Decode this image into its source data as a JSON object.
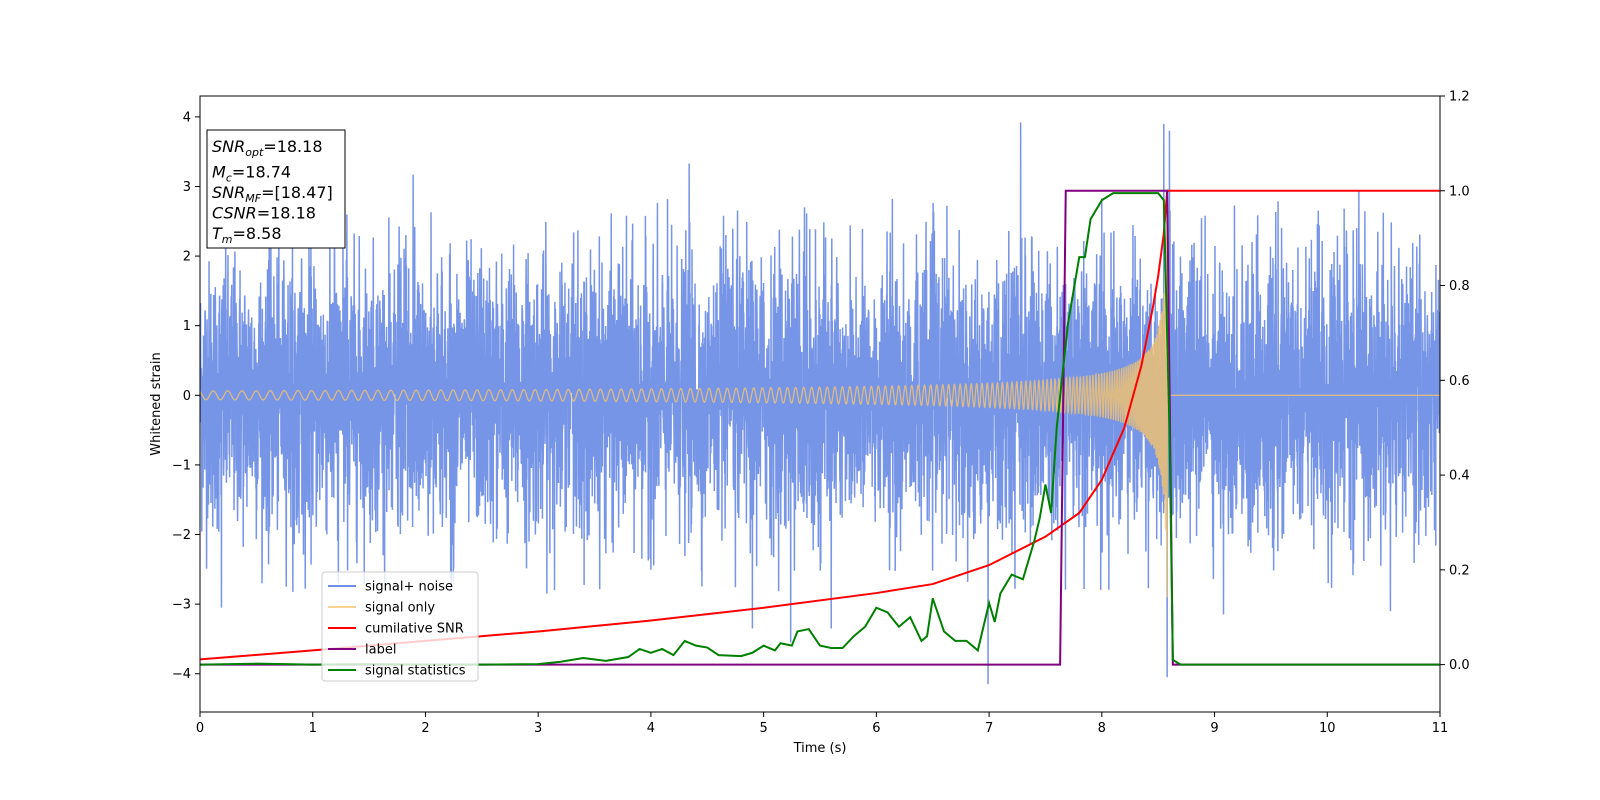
{
  "chart_data": {
    "type": "line",
    "xlabel": "Time (s)",
    "ylabel": "Whitened strain",
    "xlim": [
      0,
      11
    ],
    "ylim": [
      -4.55,
      4.3
    ],
    "y2lim": [
      -0.1,
      1.2
    ],
    "xticks": [
      0,
      1,
      2,
      3,
      4,
      5,
      6,
      7,
      8,
      9,
      10,
      11
    ],
    "yticks": [
      -4,
      -3,
      -2,
      -1,
      0,
      1,
      2,
      3,
      4
    ],
    "y2ticks": [
      0.0,
      0.2,
      0.4,
      0.6,
      0.8,
      1.0,
      1.2
    ],
    "y2tick_labels": [
      "0.0",
      "0.2",
      "0.4",
      "0.6",
      "0.8",
      "1.0",
      "1.2"
    ],
    "grid": false,
    "legend_position": "lower-left",
    "series": [
      {
        "name": "signal+ noise",
        "axis": "left",
        "color": "#6f8fe6",
        "kind": "noise",
        "noise_sd": 0.95,
        "spikes": [
          {
            "x": 4.34,
            "y": 3.33
          },
          {
            "x": 1.89,
            "y": 3.17
          },
          {
            "x": 7.28,
            "y": 3.92
          },
          {
            "x": 8.55,
            "y": 3.9
          },
          {
            "x": 8.6,
            "y": 3.8
          },
          {
            "x": 10.28,
            "y": 2.95
          },
          {
            "x": 6.99,
            "y": -4.15
          },
          {
            "x": 8.58,
            "y": -4.05
          },
          {
            "x": 5.24,
            "y": -3.55
          },
          {
            "x": 4.9,
            "y": -3.35
          },
          {
            "x": 5.6,
            "y": -3.35
          },
          {
            "x": 9.08,
            "y": -3.15
          },
          {
            "x": 10.56,
            "y": -3.1
          },
          {
            "x": 0.19,
            "y": -3.05
          }
        ]
      },
      {
        "name": "signal only",
        "axis": "left",
        "color": "#f5c36e",
        "kind": "chirp",
        "merger_time": 8.58,
        "end_amplitude": 3.3
      },
      {
        "name": "cumilative SNR",
        "axis": "right",
        "color": "#ff0000",
        "points": [
          [
            0,
            0.011
          ],
          [
            1,
            0.03
          ],
          [
            2,
            0.05
          ],
          [
            3,
            0.07
          ],
          [
            4,
            0.093
          ],
          [
            5,
            0.12
          ],
          [
            6,
            0.151
          ],
          [
            6.5,
            0.17
          ],
          [
            7,
            0.21
          ],
          [
            7.5,
            0.27
          ],
          [
            7.8,
            0.32
          ],
          [
            8.0,
            0.39
          ],
          [
            8.2,
            0.5
          ],
          [
            8.35,
            0.63
          ],
          [
            8.45,
            0.75
          ],
          [
            8.5,
            0.82
          ],
          [
            8.55,
            0.91
          ],
          [
            8.58,
            1.0
          ],
          [
            11,
            1.0
          ]
        ]
      },
      {
        "name": "label",
        "axis": "right",
        "color": "#800080",
        "points": [
          [
            0,
            0.0
          ],
          [
            7.63,
            0.0
          ],
          [
            7.68,
            1.0
          ],
          [
            8.58,
            1.0
          ],
          [
            8.63,
            0.0
          ],
          [
            11,
            0.0
          ]
        ]
      },
      {
        "name": "signal statistics",
        "axis": "right",
        "color": "#008000",
        "points": [
          [
            0,
            0.0
          ],
          [
            0.5,
            0.002
          ],
          [
            1,
            0.0
          ],
          [
            1.5,
            0.001
          ],
          [
            2,
            0.0
          ],
          [
            2.5,
            0.0
          ],
          [
            3,
            0.001
          ],
          [
            3.2,
            0.006
          ],
          [
            3.4,
            0.014
          ],
          [
            3.6,
            0.008
          ],
          [
            3.8,
            0.016
          ],
          [
            3.9,
            0.033
          ],
          [
            4.0,
            0.025
          ],
          [
            4.1,
            0.033
          ],
          [
            4.2,
            0.02
          ],
          [
            4.3,
            0.05
          ],
          [
            4.4,
            0.04
          ],
          [
            4.5,
            0.036
          ],
          [
            4.6,
            0.02
          ],
          [
            4.8,
            0.018
          ],
          [
            4.9,
            0.025
          ],
          [
            5.0,
            0.04
          ],
          [
            5.1,
            0.03
          ],
          [
            5.15,
            0.045
          ],
          [
            5.25,
            0.04
          ],
          [
            5.3,
            0.07
          ],
          [
            5.4,
            0.075
          ],
          [
            5.5,
            0.04
          ],
          [
            5.6,
            0.035
          ],
          [
            5.7,
            0.035
          ],
          [
            5.8,
            0.06
          ],
          [
            5.9,
            0.08
          ],
          [
            6.0,
            0.12
          ],
          [
            6.1,
            0.11
          ],
          [
            6.2,
            0.08
          ],
          [
            6.3,
            0.1
          ],
          [
            6.4,
            0.05
          ],
          [
            6.45,
            0.06
          ],
          [
            6.5,
            0.14
          ],
          [
            6.6,
            0.07
          ],
          [
            6.7,
            0.05
          ],
          [
            6.8,
            0.05
          ],
          [
            6.9,
            0.03
          ],
          [
            7.0,
            0.13
          ],
          [
            7.05,
            0.09
          ],
          [
            7.1,
            0.15
          ],
          [
            7.2,
            0.19
          ],
          [
            7.3,
            0.18
          ],
          [
            7.4,
            0.26
          ],
          [
            7.45,
            0.31
          ],
          [
            7.5,
            0.38
          ],
          [
            7.55,
            0.32
          ],
          [
            7.6,
            0.5
          ],
          [
            7.7,
            0.72
          ],
          [
            7.8,
            0.86
          ],
          [
            7.85,
            0.86
          ],
          [
            7.9,
            0.94
          ],
          [
            8.0,
            0.98
          ],
          [
            8.1,
            0.995
          ],
          [
            8.3,
            0.995
          ],
          [
            8.5,
            0.995
          ],
          [
            8.55,
            0.98
          ],
          [
            8.6,
            0.5
          ],
          [
            8.63,
            0.01
          ],
          [
            8.7,
            0.0
          ],
          [
            11,
            0.0
          ]
        ]
      }
    ],
    "annotations": [
      {
        "base": "SNR",
        "sub": "opt",
        "value": "=18.18"
      },
      {
        "base": "M",
        "sub": "c",
        "value": "=18.74"
      },
      {
        "base": "SNR",
        "sub": "MF",
        "value": "=[18.47]"
      },
      {
        "base": "CSNR",
        "sub": "",
        "value": "=18.18"
      },
      {
        "base": "T",
        "sub": "m",
        "value": "=8.58"
      }
    ]
  }
}
